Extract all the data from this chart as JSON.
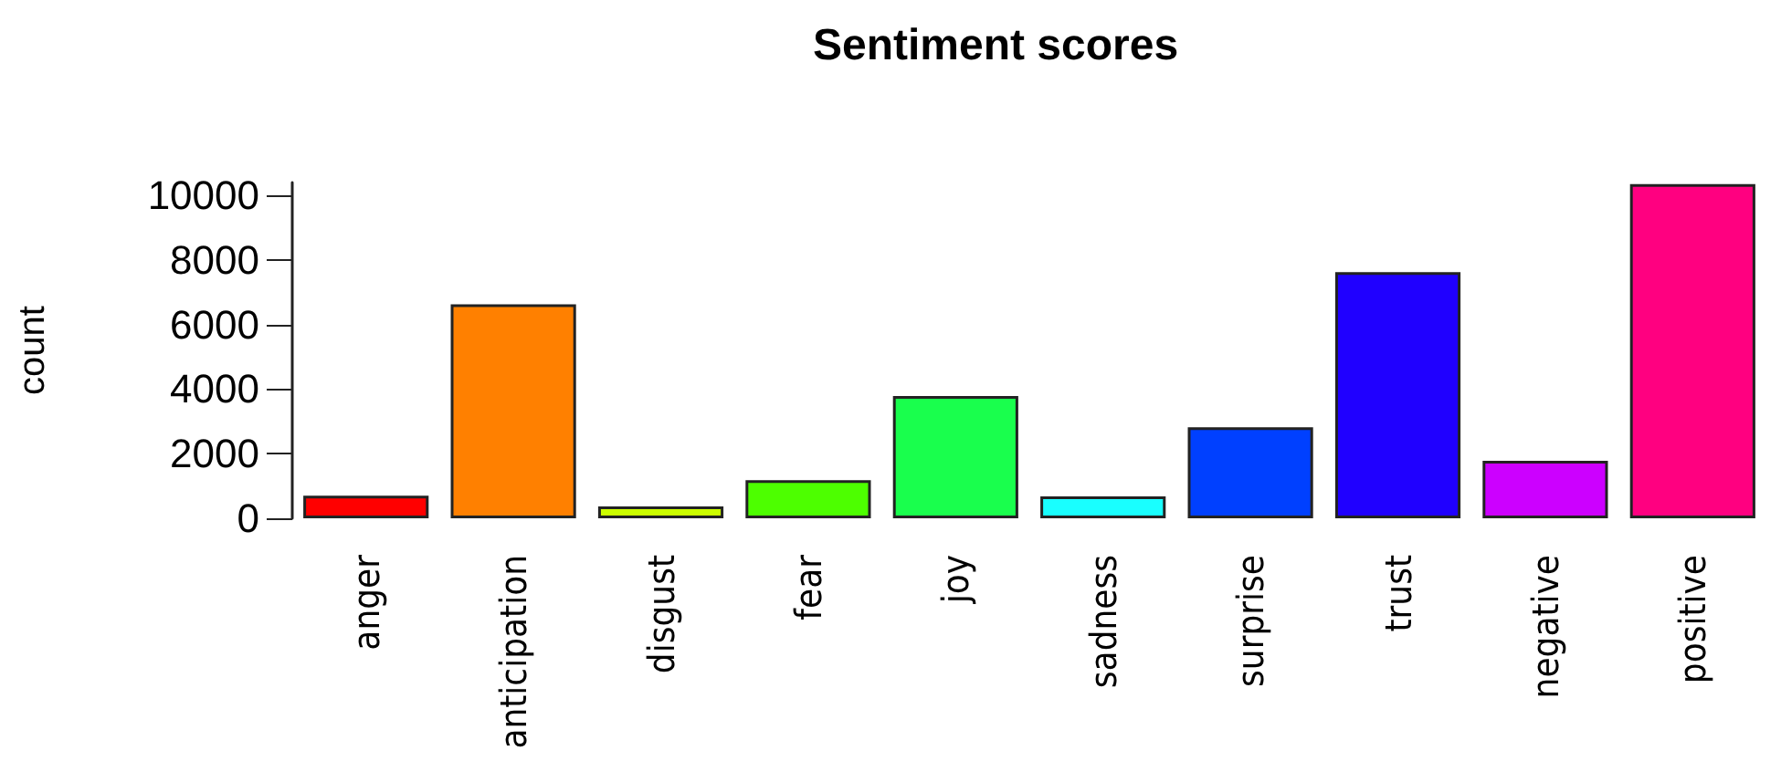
{
  "chart_data": {
    "type": "bar",
    "title": "Sentiment scores",
    "ylabel": "count",
    "categories": [
      "anger",
      "anticipation",
      "disgust",
      "fear",
      "joy",
      "sadness",
      "surprise",
      "trust",
      "negative",
      "positive"
    ],
    "values": [
      700,
      6630,
      370,
      1180,
      3790,
      680,
      2820,
      7620,
      1780,
      10350
    ],
    "colors": [
      "#ff0000",
      "#ff8000",
      "#ccff00",
      "#4dff00",
      "#19ff4d",
      "#19ffff",
      "#0040ff",
      "#2000ff",
      "#cc00ff",
      "#ff0080"
    ],
    "ylim": [
      0,
      10400
    ],
    "yticks": [
      0,
      2000,
      4000,
      6000,
      8000,
      10000
    ],
    "grid": false
  }
}
